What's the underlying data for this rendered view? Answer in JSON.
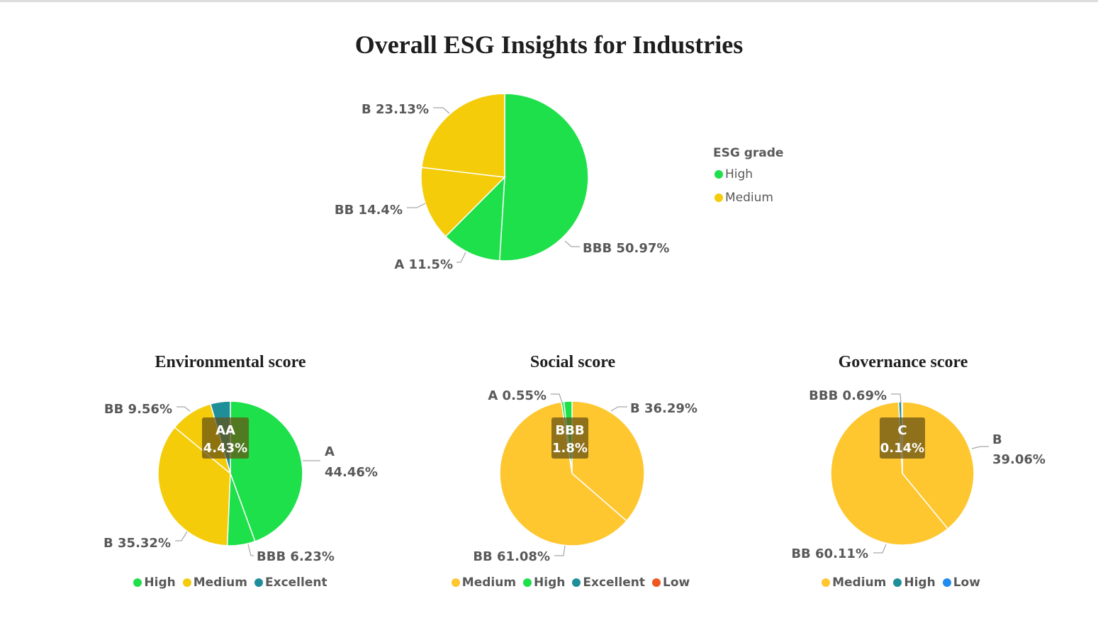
{
  "title": "Overall ESG Insights for Industries",
  "colors": {
    "High": "#1ee04a",
    "Medium": "#f5cc0a",
    "MediumAlt": "#fec62f",
    "Excellent": "#1e8f99",
    "Low": "#f0571f",
    "LowBlue": "#1f8cf0"
  },
  "chart_data": [
    {
      "type": "pie",
      "title": "Overall ESG Insights for Industries",
      "legend_title": "ESG grade",
      "legend": [
        {
          "name": "High",
          "color": "#1ee04a"
        },
        {
          "name": "Medium",
          "color": "#f5cc0a"
        }
      ],
      "slices": [
        {
          "label": "BBB",
          "value": 50.97,
          "text": "BBB 50.97%",
          "color": "#1ee04a"
        },
        {
          "label": "A",
          "value": 11.5,
          "text": "A 11.5%",
          "color": "#1ee04a"
        },
        {
          "label": "BB",
          "value": 14.4,
          "text": "BB 14.4%",
          "color": "#f5cc0a"
        },
        {
          "label": "B",
          "value": 23.13,
          "text": "B 23.13%",
          "color": "#f5cc0a"
        }
      ]
    },
    {
      "type": "pie",
      "title": "Environmental score",
      "legend": [
        {
          "name": "High",
          "color": "#1ee04a"
        },
        {
          "name": "Medium",
          "color": "#f5cc0a"
        },
        {
          "name": "Excellent",
          "color": "#1e8f99"
        }
      ],
      "slices": [
        {
          "label": "A",
          "value": 44.46,
          "text": "A",
          "text2": "44.46%",
          "color": "#1ee04a"
        },
        {
          "label": "BBB",
          "value": 6.23,
          "text": "BBB 6.23%",
          "color": "#1ee04a"
        },
        {
          "label": "B",
          "value": 35.32,
          "text": "B 35.32%",
          "color": "#f5cc0a"
        },
        {
          "label": "BB",
          "value": 9.56,
          "text": "BB 9.56%",
          "color": "#f5cc0a"
        },
        {
          "label": "AA",
          "value": 4.43,
          "text": "AA",
          "text2": "4.43%",
          "color": "#1e8f99",
          "inside": true
        }
      ]
    },
    {
      "type": "pie",
      "title": "Social score",
      "legend": [
        {
          "name": "Medium",
          "color": "#fec62f"
        },
        {
          "name": "High",
          "color": "#1ee04a"
        },
        {
          "name": "Excellent",
          "color": "#1e8f99"
        },
        {
          "name": "Low",
          "color": "#f0571f"
        }
      ],
      "slices": [
        {
          "label": "B",
          "value": 36.29,
          "text": "B 36.29%",
          "color": "#fec62f"
        },
        {
          "label": "BB",
          "value": 61.08,
          "text": "BB 61.08%",
          "color": "#fec62f"
        },
        {
          "label": "A",
          "value": 0.55,
          "text": "A 0.55%",
          "color": "#1ee04a"
        },
        {
          "label": "BBB",
          "value": 1.8,
          "text": "BBB",
          "text2": "1.8%",
          "color": "#1ee04a",
          "inside": true
        }
      ]
    },
    {
      "type": "pie",
      "title": "Governance score",
      "legend": [
        {
          "name": "Medium",
          "color": "#fec62f"
        },
        {
          "name": "High",
          "color": "#1e8f99"
        },
        {
          "name": "Low",
          "color": "#1f8cf0"
        }
      ],
      "slices": [
        {
          "label": "B",
          "value": 39.06,
          "text": "B",
          "text2": "39.06%",
          "color": "#fec62f"
        },
        {
          "label": "BB",
          "value": 60.11,
          "text": "BB 60.11%",
          "color": "#fec62f"
        },
        {
          "label": "BBB",
          "value": 0.69,
          "text": "BBB 0.69%",
          "color": "#1e8f99"
        },
        {
          "label": "C",
          "value": 0.14,
          "text": "C",
          "text2": "0.14%",
          "color": "#1f8cf0",
          "inside": true
        }
      ]
    }
  ]
}
